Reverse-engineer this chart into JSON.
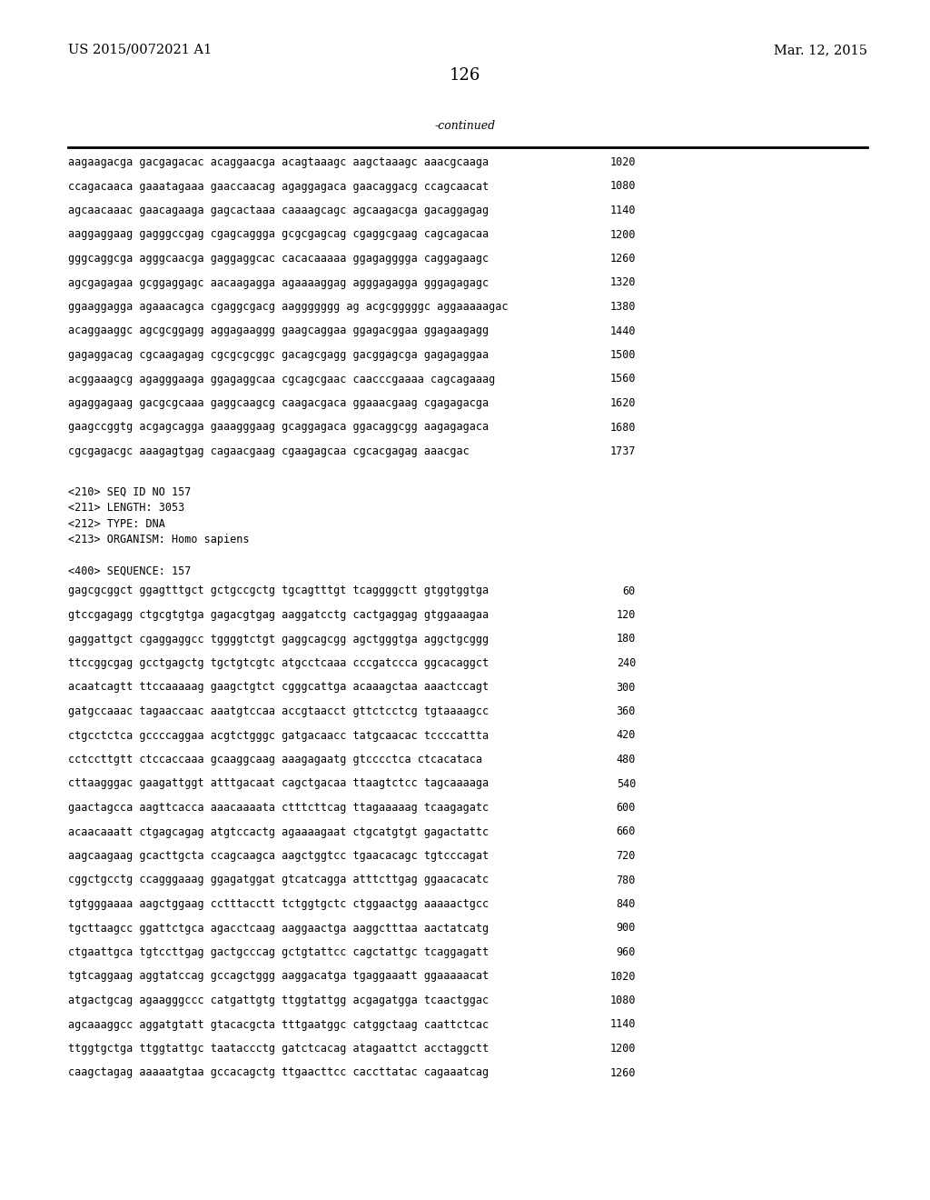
{
  "header_left": "US 2015/0072021 A1",
  "header_right": "Mar. 12, 2015",
  "page_number": "126",
  "continued_label": "-continued",
  "background_color": "#ffffff",
  "text_color": "#000000",
  "font_size_header": 10.5,
  "font_size_body": 8.5,
  "font_size_page": 13,
  "sequence_lines_top": [
    [
      "aagaagacga gacgagacac acaggaacga acagtaaagc aagctaaagc aaacgcaaga",
      "1020"
    ],
    [
      "ccagacaaca gaaatagaaa gaaccaacag agaggagaca gaacaggacg ccagcaacat",
      "1080"
    ],
    [
      "agcaacaaac gaacagaaga gagcactaaa caaaagcagc agcaagacga gacaggagag",
      "1140"
    ],
    [
      "aaggaggaag gagggccgag cgagcaggga gcgcgagcag cgaggcgaag cagcagacaa",
      "1200"
    ],
    [
      "gggcaggcga agggcaacga gaggaggcac cacacaaaaa ggagagggga caggagaagc",
      "1260"
    ],
    [
      "agcgagagaa gcggaggagc aacaagagga agaaaaggag agggagagga gggagagagc",
      "1320"
    ],
    [
      "ggaaggagga agaaacagca cgaggcgacg aaggggggg ag acgcgggggc aggaaaaagac",
      "1380"
    ],
    [
      "acaggaaggc agcgcggagg aggagaaggg gaagcaggaa ggagacggaa ggagaagagg",
      "1440"
    ],
    [
      "gagaggacag cgcaagagag cgcgcgcggc gacagcgagg gacggagcga gagagaggaa",
      "1500"
    ],
    [
      "acggaaagcg agagggaaga ggagaggcaa cgcagcgaac caacccgaaaa cagcagaaag",
      "1560"
    ],
    [
      "agaggagaag gacgcgcaaa gaggcaagcg caagacgaca ggaaacgaag cgagagacga",
      "1620"
    ],
    [
      "gaagccggtg acgagcagga gaaagggaag gcaggagaca ggacaggcgg aagagagaca",
      "1680"
    ],
    [
      "cgcgagacgc aaagagtgag cagaacgaag cgaagagcaa cgcacgagag aaacgac",
      "1737"
    ]
  ],
  "metadata_lines": [
    "<210> SEQ ID NO 157",
    "<211> LENGTH: 3053",
    "<212> TYPE: DNA",
    "<213> ORGANISM: Homo sapiens",
    "",
    "<400> SEQUENCE: 157"
  ],
  "sequence_lines_bottom": [
    [
      "gagcgcggct ggagtttgct gctgccgctg tgcagtttgt tcaggggctt gtggtggtga",
      "60"
    ],
    [
      "gtccgagagg ctgcgtgtga gagacgtgag aaggatcctg cactgaggag gtggaaagaa",
      "120"
    ],
    [
      "gaggattgct cgaggaggcc tggggtctgt gaggcagcgg agctgggtga aggctgcggg",
      "180"
    ],
    [
      "ttccggcgag gcctgagctg tgctgtcgtc atgcctcaaa cccgatccca ggcacaggct",
      "240"
    ],
    [
      "acaatcagtt ttccaaaaag gaagctgtct cgggcattga acaaagctaa aaactccagt",
      "300"
    ],
    [
      "gatgccaaac tagaaccaac aaatgtccaa accgtaacct gttctcctcg tgtaaaagcc",
      "360"
    ],
    [
      "ctgcctctca gccccaggaa acgtctgggc gatgacaacc tatgcaacac tccccattta",
      "420"
    ],
    [
      "cctccttgtt ctccaccaaa gcaaggcaag aaagagaatg gtcccctca ctcacataca",
      "480"
    ],
    [
      "cttaagggac gaagattggt atttgacaat cagctgacaa ttaagtctcc tagcaaaaga",
      "540"
    ],
    [
      "gaactagcca aagttcacca aaacaaaata ctttcttcag ttagaaaaag tcaagagatc",
      "600"
    ],
    [
      "acaacaaatt ctgagcagag atgtccactg agaaaagaat ctgcatgtgt gagactattc",
      "660"
    ],
    [
      "aagcaagaag gcacttgcta ccagcaagca aagctggtcc tgaacacagc tgtcccagat",
      "720"
    ],
    [
      "cggctgcctg ccagggaaag ggagatggat gtcatcagga atttcttgag ggaacacatc",
      "780"
    ],
    [
      "tgtgggaaaa aagctggaag cctttacctt tctggtgctc ctggaactgg aaaaactgcc",
      "840"
    ],
    [
      "tgcttaagcc ggattctgca agacctcaag aaggaactga aaggctttaa aactatcatg",
      "900"
    ],
    [
      "ctgaattgca tgtccttgag gactgcccag gctgtattcc cagctattgc tcaggagatt",
      "960"
    ],
    [
      "tgtcaggaag aggtatccag gccagctggg aaggacatga tgaggaaatt ggaaaaacat",
      "1020"
    ],
    [
      "atgactgcag agaagggccc catgattgtg ttggtattgg acgagatgga tcaactggac",
      "1080"
    ],
    [
      "agcaaaggcc aggatgtatt gtacacgcta tttgaatggc catggctaag caattctcac",
      "1140"
    ],
    [
      "ttggtgctga ttggtattgc taataccctg gatctcacag atagaattct acctaggctt",
      "1200"
    ],
    [
      "caagctagag aaaaatgtaa gccacagctg ttgaacttcc caccttatac cagaaatcag",
      "1260"
    ]
  ]
}
